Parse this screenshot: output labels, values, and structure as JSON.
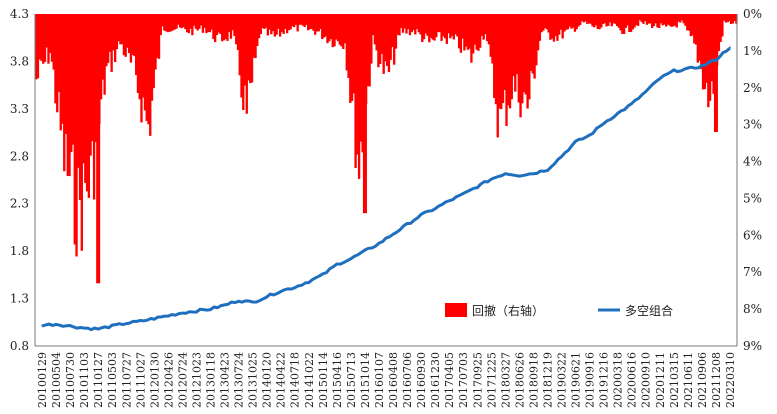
{
  "chart_data": {
    "type": "line",
    "title": "",
    "xlabel": "",
    "ylabel_left": "",
    "ylabel_right": "",
    "grid": false,
    "legend_position": "bottom-right",
    "colors": {
      "drawdown": "#ff0000",
      "long_short": "#1f6fbf"
    },
    "left_axis": {
      "ylim": [
        0.8,
        4.3
      ],
      "ticks": [
        "0.8",
        "1.3",
        "1.8",
        "2.3",
        "2.8",
        "3.3",
        "3.8",
        "4.3"
      ]
    },
    "right_axis": {
      "ylim_percent": [
        0,
        9
      ],
      "inverted": true,
      "ticks": [
        "0%",
        "1%",
        "2%",
        "3%",
        "4%",
        "5%",
        "6%",
        "7%",
        "8%",
        "9%"
      ]
    },
    "x_tick_labels": [
      "20100129",
      "20100504",
      "20100730",
      "20101103",
      "20110127",
      "20110503",
      "20110727",
      "20111027",
      "20120130",
      "20120426",
      "20120724",
      "20121023",
      "20130118",
      "20130423",
      "20130724",
      "20131025",
      "20140120",
      "20140422",
      "20140718",
      "20141022",
      "20150114",
      "20150416",
      "20150713",
      "20151014",
      "20160107",
      "20160408",
      "20160706",
      "20160930",
      "20161230",
      "20170405",
      "20170703",
      "20170925",
      "20171225",
      "20180327",
      "20180626",
      "20180918",
      "20181219",
      "20190322",
      "20190621",
      "20190916",
      "20191216",
      "20200318",
      "20200616",
      "20200910",
      "20201211",
      "20210315",
      "20210611",
      "20210906",
      "20211208",
      "20220310"
    ],
    "series": [
      {
        "name": "回撤（右轴）",
        "axis": "right",
        "kind": "area",
        "x": [
          "20100129",
          "20100504",
          "20100730",
          "20101103",
          "20110127",
          "20110503",
          "20110727",
          "20111027",
          "20120130",
          "20120426",
          "20120724",
          "20121023",
          "20130118",
          "20130423",
          "20130724",
          "20131025",
          "20140120",
          "20140422",
          "20140718",
          "20141022",
          "20150114",
          "20150416",
          "20150713",
          "20151014",
          "20160107",
          "20160408",
          "20160706",
          "20160930",
          "20161230",
          "20170405",
          "20170703",
          "20170925",
          "20171225",
          "20180327",
          "20180626",
          "20180918",
          "20181219",
          "20190322",
          "20190621",
          "20190916",
          "20191216",
          "20200318",
          "20200616",
          "20200910",
          "20201211",
          "20210315",
          "20210611",
          "20210906",
          "20211208",
          "20220310"
        ],
        "values": [
          2.3,
          1.3,
          5.0,
          6.9,
          5.5,
          2.0,
          1.0,
          2.0,
          4.0,
          0.5,
          0.5,
          0.6,
          0.5,
          0.9,
          0.7,
          3.5,
          0.6,
          0.8,
          0.5,
          0.5,
          0.6,
          0.9,
          1.0,
          5.3,
          1.0,
          2.2,
          0.6,
          0.6,
          1.0,
          0.8,
          1.0,
          1.5,
          0.6,
          3.8,
          2.5,
          3.2,
          0.6,
          0.8,
          0.6,
          0.3,
          0.5,
          0.4,
          0.6,
          0.3,
          0.4,
          0.5,
          0.3,
          1.2,
          3.1,
          0.3
        ],
        "extremes": [
          {
            "x": "20110127",
            "value": 7.3
          },
          {
            "x": "20151014",
            "value": 5.4
          },
          {
            "x": "20211208",
            "value": 3.2
          }
        ]
      },
      {
        "name": "多空组合",
        "axis": "left",
        "kind": "line",
        "x": [
          "20100129",
          "20100504",
          "20100730",
          "20101103",
          "20110127",
          "20110503",
          "20110727",
          "20111027",
          "20120130",
          "20120426",
          "20120724",
          "20121023",
          "20130118",
          "20130423",
          "20130724",
          "20131025",
          "20140120",
          "20140422",
          "20140718",
          "20141022",
          "20150114",
          "20150416",
          "20150713",
          "20151014",
          "20160107",
          "20160408",
          "20160706",
          "20160930",
          "20161230",
          "20170405",
          "20170703",
          "20170925",
          "20171225",
          "20180327",
          "20180626",
          "20180918",
          "20181219",
          "20190322",
          "20190621",
          "20190916",
          "20191216",
          "20200318",
          "20200616",
          "20200910",
          "20201211",
          "20210315",
          "20210611",
          "20210906",
          "20211208",
          "20220310"
        ],
        "values": [
          1.02,
          1.03,
          1.01,
          0.99,
          0.98,
          1.01,
          1.04,
          1.06,
          1.09,
          1.12,
          1.15,
          1.17,
          1.19,
          1.23,
          1.28,
          1.26,
          1.32,
          1.38,
          1.42,
          1.48,
          1.55,
          1.66,
          1.72,
          1.8,
          1.88,
          1.98,
          2.08,
          2.18,
          2.25,
          2.33,
          2.4,
          2.48,
          2.56,
          2.62,
          2.6,
          2.62,
          2.66,
          2.8,
          2.95,
          3.02,
          3.15,
          3.25,
          3.35,
          3.48,
          3.62,
          3.7,
          3.72,
          3.75,
          3.82,
          3.95
        ]
      }
    ]
  }
}
